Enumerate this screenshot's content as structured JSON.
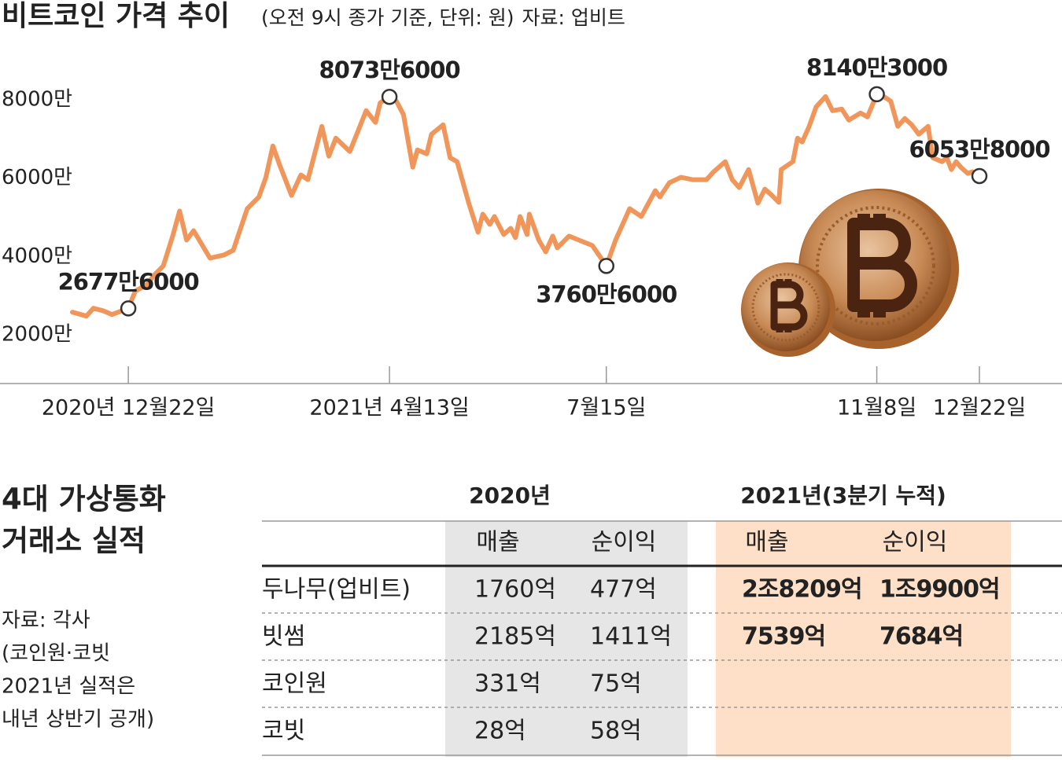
{
  "chart_data": {
    "type": "line",
    "title": "비트코인 가격 추이",
    "subtitle": "(오전 9시 종가 기준, 단위: 원)",
    "source": "자료: 업비트",
    "x": [
      "2020-11-28",
      "2020-12-04",
      "2020-12-07",
      "2020-12-11",
      "2020-12-15",
      "2020-12-22",
      "2020-12-25",
      "2020-12-30",
      "2021-01-02",
      "2021-01-06",
      "2021-01-10",
      "2021-01-13",
      "2021-01-16",
      "2021-01-19",
      "2021-01-26",
      "2021-02-01",
      "2021-02-05",
      "2021-02-11",
      "2021-02-16",
      "2021-02-19",
      "2021-02-22",
      "2021-02-25",
      "2021-03-02",
      "2021-03-06",
      "2021-03-09",
      "2021-03-15",
      "2021-03-18",
      "2021-03-21",
      "2021-03-27",
      "2021-04-03",
      "2021-04-07",
      "2021-04-09",
      "2021-04-13",
      "2021-04-16",
      "2021-04-19",
      "2021-04-23",
      "2021-04-25",
      "2021-04-29",
      "2021-05-01",
      "2021-05-06",
      "2021-05-09",
      "2021-05-12",
      "2021-05-17",
      "2021-05-21",
      "2021-05-23",
      "2021-05-26",
      "2021-05-28",
      "2021-06-01",
      "2021-06-04",
      "2021-06-06",
      "2021-06-08",
      "2021-06-11",
      "2021-06-12",
      "2021-06-16",
      "2021-06-19",
      "2021-06-22",
      "2021-06-24",
      "2021-06-29",
      "2021-07-09",
      "2021-07-15",
      "2021-07-19",
      "2021-07-25",
      "2021-07-30",
      "2021-08-05",
      "2021-08-07",
      "2021-08-11",
      "2021-08-16",
      "2021-08-21",
      "2021-08-27",
      "2021-08-30",
      "2021-09-04",
      "2021-09-07",
      "2021-09-10",
      "2021-09-14",
      "2021-09-18",
      "2021-09-21",
      "2021-09-24",
      "2021-09-27",
      "2021-09-28",
      "2021-10-03",
      "2021-10-05",
      "2021-10-07",
      "2021-10-10",
      "2021-10-13",
      "2021-10-17",
      "2021-10-20",
      "2021-10-24",
      "2021-10-27",
      "2021-11-01",
      "2021-11-04",
      "2021-11-08",
      "2021-11-11",
      "2021-11-14",
      "2021-11-17",
      "2021-11-20",
      "2021-11-23",
      "2021-11-26",
      "2021-11-30",
      "2021-12-02",
      "2021-12-06",
      "2021-12-08",
      "2021-12-10",
      "2021-12-12",
      "2021-12-14",
      "2021-12-17",
      "2021-12-19",
      "2021-12-22"
    ],
    "series": [
      {
        "name": "비트코인",
        "color": "#f0965a",
        "values": [
          25800000,
          24800000,
          26800000,
          26200000,
          25200000,
          26776000,
          31200000,
          32800000,
          35200000,
          37600000,
          45200000,
          51600000,
          44200000,
          46600000,
          39600000,
          40400000,
          41600000,
          52200000,
          55200000,
          60200000,
          68200000,
          63200000,
          55600000,
          60800000,
          59600000,
          73200000,
          65600000,
          70200000,
          66800000,
          77200000,
          74200000,
          79200000,
          80736000,
          79600000,
          76200000,
          62800000,
          67200000,
          66200000,
          71200000,
          73600000,
          65200000,
          64200000,
          53600000,
          46200000,
          50800000,
          48200000,
          50200000,
          45600000,
          47200000,
          44800000,
          50200000,
          45600000,
          50800000,
          44200000,
          41200000,
          45200000,
          42200000,
          45200000,
          42800000,
          37606000,
          44200000,
          52200000,
          50200000,
          56800000,
          55200000,
          58800000,
          60200000,
          59600000,
          59600000,
          61600000,
          64200000,
          59600000,
          57600000,
          62200000,
          53600000,
          57200000,
          55600000,
          53800000,
          62200000,
          64200000,
          70200000,
          69200000,
          73200000,
          78200000,
          80800000,
          77200000,
          77600000,
          74800000,
          76600000,
          75600000,
          81403000,
          80800000,
          79600000,
          73200000,
          75200000,
          73600000,
          71200000,
          73200000,
          65200000,
          64200000,
          65200000,
          62200000,
          64200000,
          62800000,
          61200000,
          61600000,
          60538000
        ],
        "value_labels": [
          null,
          null,
          null,
          null,
          null,
          "2677만6000",
          null,
          null,
          null,
          null,
          null,
          null,
          null,
          null,
          null,
          null,
          null,
          null,
          null,
          null,
          null,
          null,
          null,
          null,
          null,
          null,
          null,
          null,
          null,
          null,
          null,
          null,
          "8073만6000",
          null,
          null,
          null,
          null,
          null,
          null,
          null,
          null,
          null,
          null,
          null,
          null,
          null,
          null,
          null,
          null,
          null,
          null,
          null,
          null,
          null,
          null,
          null,
          null,
          null,
          null,
          "3760만6000",
          null,
          null,
          null,
          null,
          null,
          null,
          null,
          null,
          null,
          null,
          null,
          null,
          null,
          null,
          null,
          null,
          null,
          null,
          null,
          null,
          null,
          null,
          null,
          null,
          null,
          null,
          null,
          null,
          null,
          null,
          "8140만3000",
          null,
          null,
          null,
          null,
          null,
          null,
          null,
          null,
          null,
          null,
          null,
          null,
          null,
          null,
          null,
          "6053만8000"
        ]
      }
    ],
    "xlim": [
      "2020-11-28",
      "2021-12-22"
    ],
    "xticks": [
      {
        "value": "2020-12-22",
        "label": "2020년 12월22일"
      },
      {
        "value": "2021-04-13",
        "label": "2021년 4월13일"
      },
      {
        "value": "2021-07-15",
        "label": "7월15일"
      },
      {
        "value": "2021-11-08",
        "label": "11월8일"
      },
      {
        "value": "2021-12-22",
        "label": "12월22일"
      }
    ],
    "ylim": [
      10000000,
      90000000
    ],
    "yticks": [
      {
        "value": 20000000,
        "label": "2000만"
      },
      {
        "value": 40000000,
        "label": "4000만"
      },
      {
        "value": 60000000,
        "label": "6000만"
      },
      {
        "value": 80000000,
        "label": "8000만"
      }
    ],
    "grid": false
  },
  "table": {
    "title": [
      "4대 가상통화",
      "거래소 실적"
    ],
    "source": [
      "자료: 각사",
      "(코인원·코빗",
      "2021년 실적은",
      "내년 상반기 공개)"
    ],
    "groups": [
      "2020년",
      "2021년(3분기 누적)"
    ],
    "columns": [
      "매출",
      "순이익",
      "매출",
      "순이익"
    ],
    "rows": [
      [
        "두나무(업비트)",
        "1760억",
        "477억",
        "2조8209억",
        "1조9900억"
      ],
      [
        "빗썸",
        "2185억",
        "1411억",
        "7539억",
        "7684억"
      ],
      [
        "코인원",
        "331억",
        "75억",
        null,
        null
      ],
      [
        "코빗",
        "28억",
        "58억",
        null,
        null
      ]
    ]
  }
}
